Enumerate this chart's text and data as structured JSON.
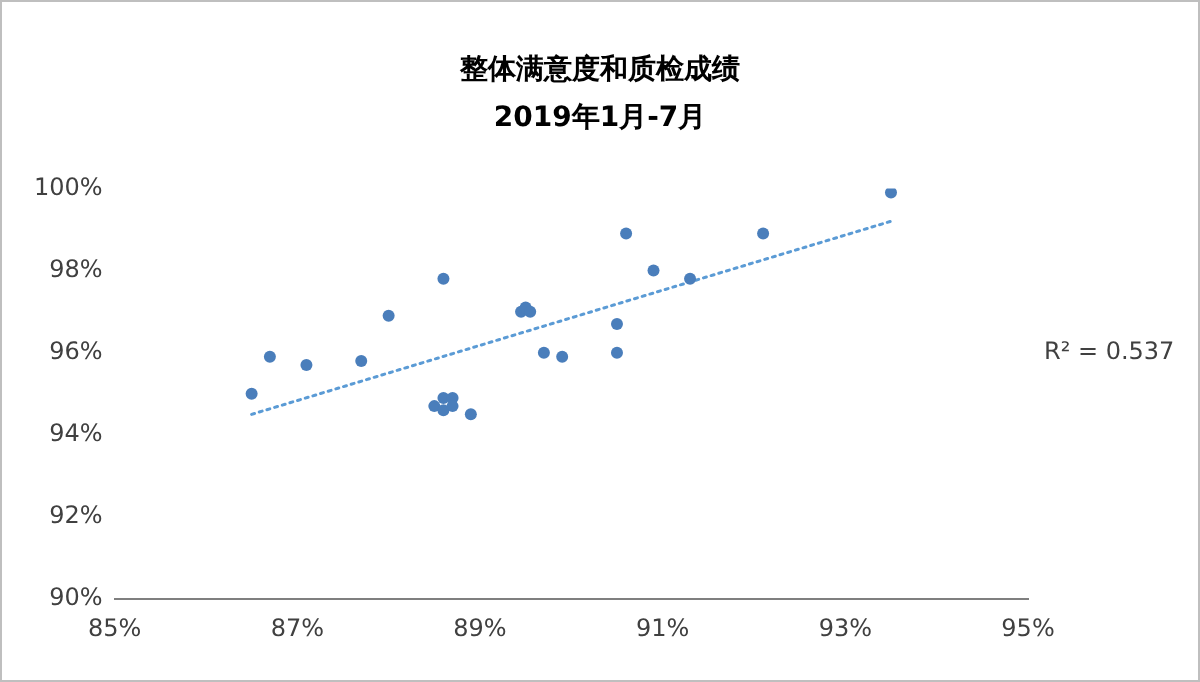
{
  "chart_data": {
    "type": "scatter",
    "title": "整体满意度和质检成绩",
    "subtitle": "2019年1月-7月",
    "series": [
      {
        "color": "#4a7ebb",
        "x": [
          86.5,
          86.7,
          87.1,
          87.7,
          88.0,
          88.6,
          88.5,
          88.6,
          88.6,
          88.7,
          88.7,
          88.9,
          89.45,
          89.5,
          89.55,
          89.7,
          89.9,
          90.5,
          90.5,
          90.6,
          90.9,
          91.3,
          92.1,
          93.5
        ],
        "values": [
          95.0,
          95.9,
          95.7,
          95.8,
          96.9,
          97.8,
          94.7,
          94.6,
          94.9,
          94.9,
          94.7,
          94.5,
          97.0,
          97.1,
          97.0,
          96.0,
          95.9,
          96.7,
          96.0,
          98.9,
          98.0,
          97.8,
          98.9,
          99.9
        ]
      },
      {
        "type": "line",
        "color": "#5b9bd5",
        "line_style": "dotted",
        "marker": "none",
        "x": [
          86.5,
          93.5
        ],
        "values": [
          94.5,
          99.2
        ]
      }
    ],
    "annotations": [
      "R² = 0.537"
    ],
    "xlim": [
      85,
      95
    ],
    "xticks": [
      {
        "value": 85,
        "label": "85%"
      },
      {
        "value": 87,
        "label": "87%"
      },
      {
        "value": 89,
        "label": "89%"
      },
      {
        "value": 91,
        "label": "91%"
      },
      {
        "value": 93,
        "label": "93%"
      },
      {
        "value": 95,
        "label": "95%"
      }
    ],
    "ylim": [
      90,
      100
    ],
    "yticks": [
      {
        "value": 90,
        "label": "90%"
      },
      {
        "value": 92,
        "label": "92%"
      },
      {
        "value": 94,
        "label": "94%"
      },
      {
        "value": 96,
        "label": "96%"
      },
      {
        "value": 98,
        "label": "98%"
      },
      {
        "value": 100,
        "label": "100%"
      }
    ],
    "grid": false,
    "legend": false,
    "marker": "circle"
  }
}
